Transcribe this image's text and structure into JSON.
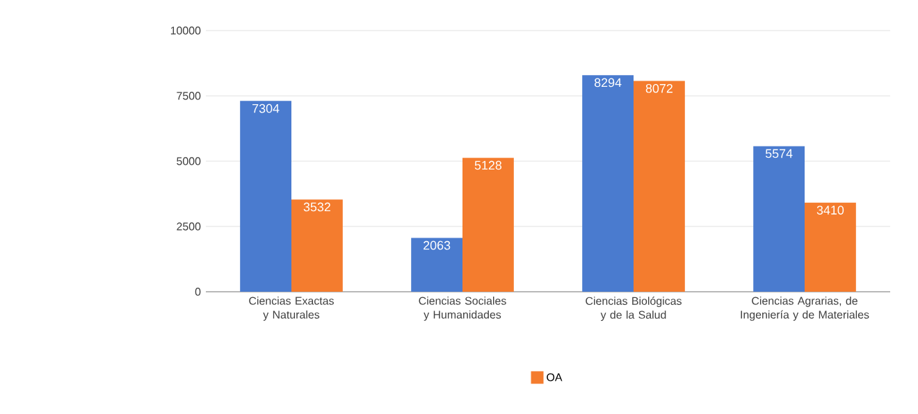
{
  "chart_data": {
    "type": "bar",
    "categories": [
      "Ciencias Exactas y Naturales",
      "Ciencias Sociales y Humanidades",
      "Ciencias Biológicas y de la Salud",
      "Ciencias Agrarias, de Ingeniería y de Materiales"
    ],
    "series": [
      {
        "color": "#4a7bcf",
        "values": [
          7304,
          2063,
          8294,
          5574
        ]
      },
      {
        "name": "OA",
        "color": "#f47c2e",
        "values": [
          3532,
          5128,
          8072,
          3410
        ]
      }
    ],
    "ylim": [
      0,
      10000
    ],
    "yticks": [
      0,
      2500,
      5000,
      7500,
      10000
    ],
    "grid": "y",
    "legend": "bottom",
    "data_labels": true
  }
}
